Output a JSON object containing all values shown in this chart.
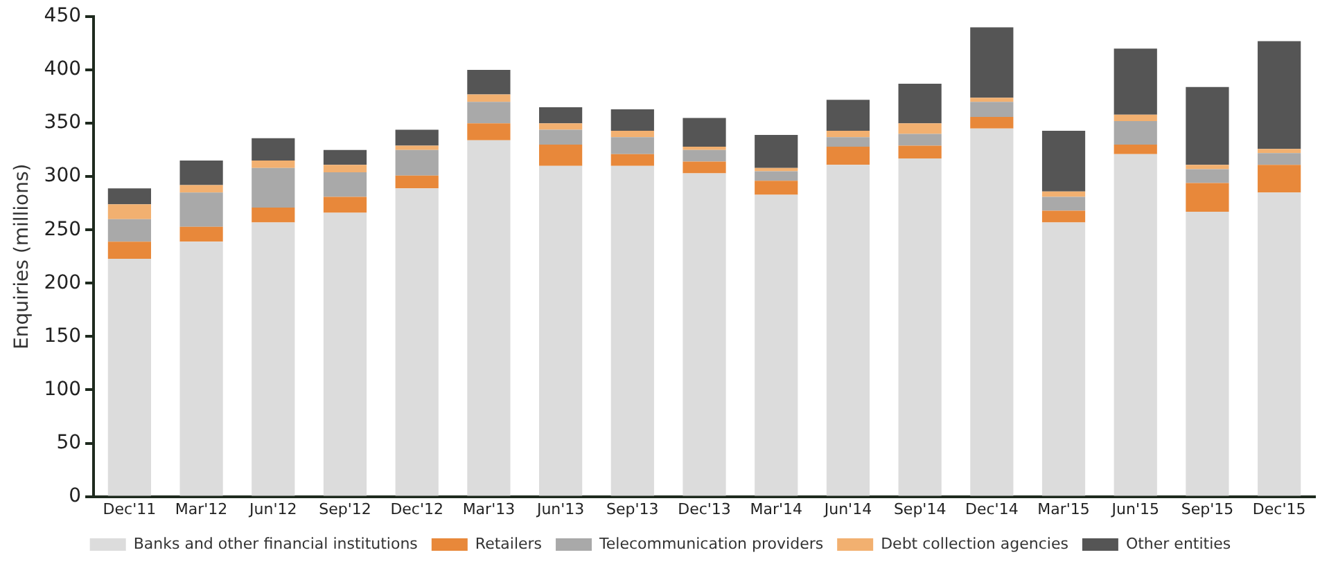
{
  "chart_data": {
    "type": "bar",
    "stacked": true,
    "ylabel": "Enquiries (millions)",
    "categories": [
      "Dec'11",
      "Mar'12",
      "Jun'12",
      "Sep'12",
      "Dec'12",
      "Mar'13",
      "Jun'13",
      "Sep'13",
      "Dec'13",
      "Mar'14",
      "Jun'14",
      "Sep'14",
      "Dec'14",
      "Mar'15",
      "Jun'15",
      "Sep'15",
      "Dec'15"
    ],
    "series": [
      {
        "name": "Banks and other financial institutions",
        "color": "#dcdcdc",
        "values": [
          223,
          239,
          257,
          266,
          289,
          334,
          310,
          310,
          303,
          283,
          311,
          317,
          345,
          257,
          321,
          267,
          285
        ]
      },
      {
        "name": "Retailers",
        "color": "#e8883a",
        "values": [
          16,
          14,
          14,
          15,
          12,
          16,
          20,
          11,
          11,
          13,
          17,
          12,
          11,
          11,
          9,
          27,
          26
        ]
      },
      {
        "name": "Telecommunication providers",
        "color": "#a9a9a9",
        "values": [
          21,
          32,
          37,
          23,
          24,
          20,
          14,
          16,
          11,
          9,
          9,
          11,
          14,
          13,
          22,
          13,
          11
        ]
      },
      {
        "name": "Debt collection agencies",
        "color": "#f2b070",
        "values": [
          14,
          7,
          7,
          7,
          4,
          7,
          6,
          6,
          3,
          3,
          6,
          10,
          4,
          5,
          6,
          4,
          4
        ]
      },
      {
        "name": "Other entities",
        "color": "#555555",
        "values": [
          15,
          23,
          21,
          14,
          15,
          23,
          15,
          20,
          27,
          31,
          29,
          37,
          66,
          57,
          62,
          73,
          101
        ]
      }
    ],
    "ylim": [
      0,
      450
    ],
    "yticks": [
      0,
      50,
      100,
      150,
      200,
      250,
      300,
      350,
      400,
      450
    ],
    "grid": false,
    "legend": "bottom"
  }
}
